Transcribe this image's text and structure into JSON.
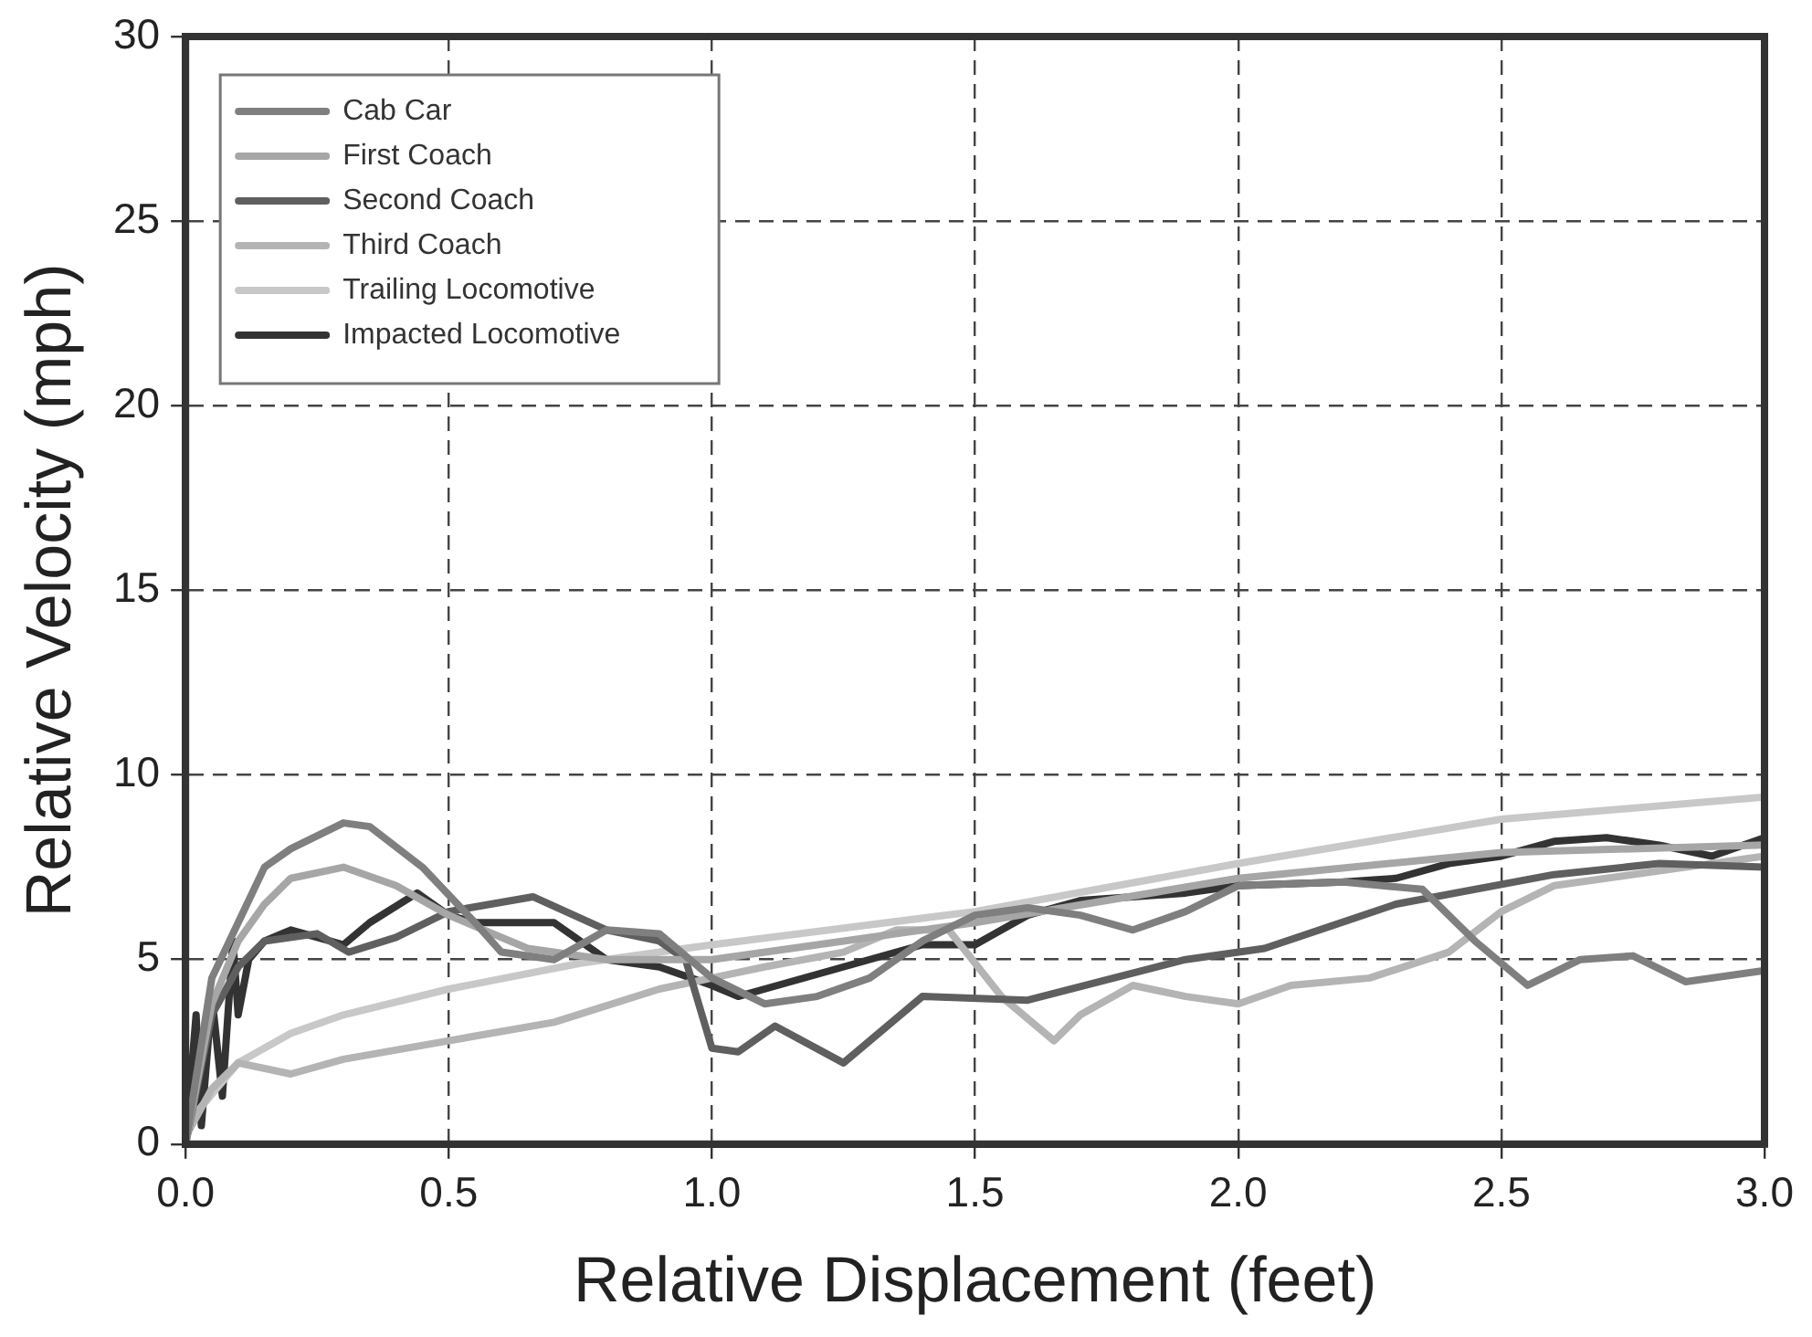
{
  "chart_data": {
    "type": "line",
    "xlabel": "Relative Displacement (feet)",
    "ylabel": "Relative Velocity (mph)",
    "xlim": [
      0,
      3
    ],
    "xticks": [
      {
        "value": 0,
        "label": "0.0"
      },
      {
        "value": 0.5,
        "label": "0.5"
      },
      {
        "value": 1,
        "label": "1.0"
      },
      {
        "value": 1.5,
        "label": "1.5"
      },
      {
        "value": 2,
        "label": "2.0"
      },
      {
        "value": 2.5,
        "label": "2.5"
      },
      {
        "value": 3,
        "label": "3.0"
      }
    ],
    "ylim": [
      0,
      30
    ],
    "yticks": [
      0,
      5,
      10,
      15,
      20,
      25,
      30
    ],
    "grid": true,
    "legend": "top left",
    "marker": "none",
    "line_style": "solid",
    "series": [
      {
        "name": "Cab Car",
        "color": "#7f7f7f",
        "x": [
          0,
          0.05,
          0.1,
          0.15,
          0.2,
          0.3,
          0.35,
          0.45,
          0.55,
          0.6,
          0.7,
          0.8,
          0.9,
          1.0,
          1.1,
          1.2,
          1.3,
          1.4,
          1.5,
          1.6,
          1.7,
          1.8,
          1.9,
          2.0,
          2.2,
          2.35,
          2.45,
          2.55,
          2.65,
          2.75,
          2.85,
          3.0
        ],
        "values": [
          0,
          4.5,
          6,
          7.5,
          8,
          8.7,
          8.6,
          7.5,
          6,
          5.2,
          5,
          5.8,
          5.7,
          4.5,
          3.8,
          4,
          4.5,
          5.5,
          6.2,
          6.4,
          6.2,
          5.8,
          6.3,
          7,
          7.1,
          6.9,
          5.5,
          4.3,
          5,
          5.1,
          4.4,
          4.7
        ]
      },
      {
        "name": "First Coach",
        "color": "#a6a6a6",
        "x": [
          0,
          0.05,
          0.1,
          0.15,
          0.2,
          0.3,
          0.4,
          0.5,
          0.65,
          0.8,
          1.0,
          1.5,
          2.0,
          2.5,
          3.0
        ],
        "values": [
          0,
          3.8,
          5.5,
          6.5,
          7.2,
          7.5,
          7,
          6.2,
          5.3,
          5,
          5,
          6,
          7.2,
          7.9,
          8.1
        ]
      },
      {
        "name": "Second Coach",
        "color": "#5f5f5f",
        "x": [
          0,
          0.05,
          0.1,
          0.15,
          0.25,
          0.31,
          0.4,
          0.5,
          0.66,
          0.8,
          0.9,
          0.95,
          1.0,
          1.05,
          1.12,
          1.25,
          1.4,
          1.6,
          1.9,
          2.05,
          2.3,
          2.6,
          2.8,
          3.0
        ],
        "values": [
          0,
          3.5,
          4.8,
          5.5,
          5.7,
          5.2,
          5.6,
          6.3,
          6.7,
          5.8,
          5.5,
          5,
          2.6,
          2.5,
          3.2,
          2.2,
          4,
          3.9,
          5,
          5.3,
          6.5,
          7.3,
          7.6,
          7.5
        ]
      },
      {
        "name": "Third Coach",
        "color": "#b4b4b4",
        "x": [
          0,
          0.05,
          0.1,
          0.2,
          0.3,
          0.5,
          0.7,
          0.9,
          1.0,
          1.1,
          1.25,
          1.35,
          1.45,
          1.55,
          1.65,
          1.7,
          1.8,
          1.9,
          2.0,
          2.1,
          2.25,
          2.4,
          2.5,
          2.6,
          2.8,
          3.0
        ],
        "values": [
          0.2,
          1.5,
          2.2,
          1.9,
          2.3,
          2.8,
          3.3,
          4.2,
          4.5,
          4.8,
          5.2,
          5.8,
          5.8,
          4,
          2.8,
          3.5,
          4.3,
          4,
          3.8,
          4.3,
          4.5,
          5.2,
          6.3,
          7,
          7.4,
          7.8
        ]
      },
      {
        "name": "Trailing Locomotive",
        "color": "#c8c8c8",
        "x": [
          0,
          0.1,
          0.2,
          0.3,
          0.5,
          0.75,
          1.0,
          1.5,
          2.0,
          2.5,
          3.0
        ],
        "values": [
          0.5,
          2.2,
          3,
          3.5,
          4.2,
          4.9,
          5.4,
          6.3,
          7.6,
          8.8,
          9.4
        ]
      },
      {
        "name": "Impacted Locomotive",
        "color": "#333333",
        "x": [
          0,
          0.02,
          0.03,
          0.05,
          0.07,
          0.09,
          0.1,
          0.12,
          0.15,
          0.2,
          0.25,
          0.3,
          0.35,
          0.44,
          0.5,
          0.55,
          0.7,
          0.8,
          0.9,
          1.0,
          1.05,
          1.1,
          1.25,
          1.4,
          1.5,
          1.6,
          1.7,
          1.8,
          1.9,
          2.0,
          2.2,
          2.3,
          2.4,
          2.5,
          2.6,
          2.7,
          2.8,
          2.9,
          3.0
        ],
        "values": [
          0,
          3.5,
          0.5,
          4,
          1.3,
          5.5,
          3.5,
          5,
          5.5,
          5.8,
          5.6,
          5.4,
          6,
          6.8,
          6.2,
          6,
          6,
          5,
          4.8,
          4.3,
          4,
          4.2,
          4.8,
          5.4,
          5.4,
          6.2,
          6.6,
          6.7,
          6.8,
          7,
          7.1,
          7.2,
          7.6,
          7.8,
          8.2,
          8.3,
          8.1,
          7.8,
          8.3
        ]
      }
    ]
  }
}
